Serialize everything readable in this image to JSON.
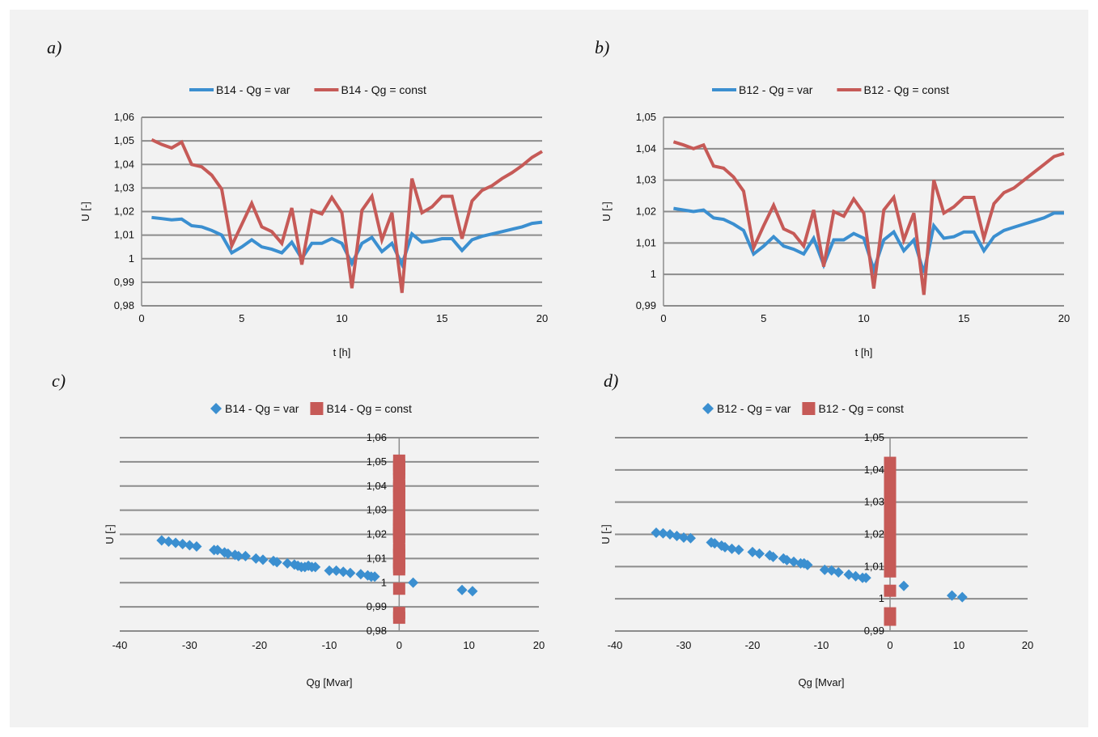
{
  "colors": {
    "var": "#3b8fd0",
    "const": "#c65a57",
    "grid": "#8c8c8c",
    "bg": "#f2f2f2"
  },
  "chart_data": [
    {
      "panel": "a)",
      "type": "line",
      "xlabel": "t [h]",
      "ylabel": "U [-]",
      "xlim": [
        0,
        20
      ],
      "ylim": [
        0.98,
        1.06
      ],
      "xticks": [
        "0",
        "5",
        "10",
        "15",
        "20"
      ],
      "yticks": [
        "0,98",
        "0,99",
        "1",
        "1,01",
        "1,02",
        "1,03",
        "1,04",
        "1,05",
        "1,06"
      ],
      "x": [
        0.5,
        1,
        1.5,
        2,
        2.5,
        3,
        3.5,
        4,
        4.5,
        5,
        5.5,
        6,
        6.5,
        7,
        7.5,
        8,
        8.5,
        9,
        9.5,
        10,
        10.5,
        11,
        11.5,
        12,
        12.5,
        13,
        13.5,
        14,
        14.5,
        15,
        15.5,
        16,
        16.5,
        17,
        17.5,
        18,
        18.5,
        19,
        19.5,
        20
      ],
      "series": [
        {
          "name": "B14 - Qg = var",
          "color": "var",
          "values": [
            1.0175,
            1.017,
            1.0165,
            1.0168,
            1.014,
            1.0135,
            1.012,
            1.01,
            1.0025,
            1.005,
            1.008,
            1.005,
            1.004,
            1.0025,
            1.007,
            1.0,
            1.0065,
            1.0065,
            1.0085,
            1.0065,
            0.998,
            1.0065,
            1.009,
            1.003,
            1.0065,
            0.9975,
            1.0105,
            1.007,
            1.0075,
            1.0085,
            1.0085,
            1.0035,
            1.008,
            1.0095,
            1.0105,
            1.0115,
            1.0125,
            1.0135,
            1.015,
            1.0155
          ]
        },
        {
          "name": "B14 - Qg = const",
          "color": "const",
          "values": [
            1.0505,
            1.0485,
            1.047,
            1.0495,
            1.04,
            1.039,
            1.0355,
            1.0295,
            1.0055,
            1.0145,
            1.0235,
            1.0135,
            1.0115,
            1.0065,
            1.0215,
            0.9975,
            1.0205,
            1.019,
            1.026,
            1.0195,
            0.9875,
            1.0205,
            1.0265,
            1.008,
            1.0195,
            0.9855,
            1.034,
            1.0195,
            1.022,
            1.0265,
            1.0265,
            1.0085,
            1.0245,
            1.029,
            1.031,
            1.034,
            1.0365,
            1.0395,
            1.043,
            1.0455
          ]
        }
      ]
    },
    {
      "panel": "b)",
      "type": "line",
      "xlabel": "t [h]",
      "ylabel": "U [-]",
      "xlim": [
        0,
        20
      ],
      "ylim": [
        0.99,
        1.05
      ],
      "xticks": [
        "0",
        "5",
        "10",
        "15",
        "20"
      ],
      "yticks": [
        "0,99",
        "1",
        "1,01",
        "1,02",
        "1,03",
        "1,04",
        "1,05"
      ],
      "x": [
        0.5,
        1,
        1.5,
        2,
        2.5,
        3,
        3.5,
        4,
        4.5,
        5,
        5.5,
        6,
        6.5,
        7,
        7.5,
        8,
        8.5,
        9,
        9.5,
        10,
        10.5,
        11,
        11.5,
        12,
        12.5,
        13,
        13.5,
        14,
        14.5,
        15,
        15.5,
        16,
        16.5,
        17,
        17.5,
        18,
        18.5,
        19,
        19.5,
        20
      ],
      "series": [
        {
          "name": "B12 - Qg = var",
          "color": "var",
          "values": [
            1.021,
            1.0205,
            1.02,
            1.0205,
            1.018,
            1.0175,
            1.016,
            1.014,
            1.0065,
            1.009,
            1.012,
            1.009,
            1.008,
            1.0065,
            1.0115,
            1.003,
            1.011,
            1.011,
            1.013,
            1.0115,
            1.0015,
            1.011,
            1.0135,
            1.0075,
            1.011,
            1.0005,
            1.0155,
            1.0115,
            1.012,
            1.0135,
            1.0135,
            1.0075,
            1.012,
            1.014,
            1.015,
            1.016,
            1.017,
            1.018,
            1.0195,
            1.0195
          ]
        },
        {
          "name": "B12 - Qg = const",
          "color": "const",
          "values": [
            1.0422,
            1.0412,
            1.04,
            1.0412,
            1.0345,
            1.0338,
            1.031,
            1.0265,
            1.0085,
            1.0155,
            1.022,
            1.0145,
            1.013,
            1.009,
            1.0205,
            1.0025,
            1.02,
            1.0185,
            1.024,
            1.0195,
            0.9955,
            1.0205,
            1.0245,
            1.011,
            1.0195,
            0.9935,
            1.03,
            1.0195,
            1.0215,
            1.0245,
            1.0245,
            1.0115,
            1.0225,
            1.026,
            1.0275,
            1.03,
            1.0325,
            1.035,
            1.0375,
            1.0385
          ]
        }
      ]
    },
    {
      "panel": "c)",
      "type": "scatter",
      "xlabel": "Qg [Mvar]",
      "ylabel": "U [-]",
      "xlim": [
        -40,
        20
      ],
      "ylim": [
        0.98,
        1.06
      ],
      "xticks": [
        "-40",
        "-30",
        "-20",
        "-10",
        "0",
        "10",
        "20"
      ],
      "yticks": [
        "0,98",
        "0,99",
        "1",
        "1,01",
        "1,02",
        "1,03",
        "1,04",
        "1,05",
        "1,06"
      ],
      "series": [
        {
          "name": "B14 - Qg = var",
          "color": "var",
          "marker": "diamond",
          "points": [
            [
              -34,
              1.0175
            ],
            [
              -33,
              1.017
            ],
            [
              -32,
              1.0165
            ],
            [
              -31,
              1.016
            ],
            [
              -30,
              1.0155
            ],
            [
              -29,
              1.015
            ],
            [
              -26.5,
              1.0135
            ],
            [
              -26,
              1.0135
            ],
            [
              -25,
              1.0125
            ],
            [
              -24.5,
              1.012
            ],
            [
              -23.5,
              1.0115
            ],
            [
              -23,
              1.011
            ],
            [
              -22,
              1.011
            ],
            [
              -20.5,
              1.01
            ],
            [
              -19.5,
              1.0095
            ],
            [
              -18,
              1.009
            ],
            [
              -17.5,
              1.0085
            ],
            [
              -16,
              1.008
            ],
            [
              -15,
              1.0075
            ],
            [
              -14.5,
              1.007
            ],
            [
              -14,
              1.0065
            ],
            [
              -13.5,
              1.0065
            ],
            [
              -13,
              1.007
            ],
            [
              -12.5,
              1.0065
            ],
            [
              -12,
              1.0065
            ],
            [
              -10,
              1.005
            ],
            [
              -9,
              1.005
            ],
            [
              -8,
              1.0045
            ],
            [
              -7,
              1.004
            ],
            [
              -5.5,
              1.0035
            ],
            [
              -4.5,
              1.003
            ],
            [
              -4,
              1.0025
            ],
            [
              -3.5,
              1.0025
            ],
            [
              2,
              1.0
            ],
            [
              9,
              0.997
            ],
            [
              10.5,
              0.9965
            ]
          ]
        },
        {
          "name": "B14 - Qg = const",
          "color": "const",
          "marker": "square",
          "points": [
            [
              0,
              1.0505
            ],
            [
              0,
              1.0485
            ],
            [
              0,
              1.047
            ],
            [
              0,
              1.0455
            ],
            [
              0,
              1.043
            ],
            [
              0,
              1.04
            ],
            [
              0,
              1.039
            ],
            [
              0,
              1.0365
            ],
            [
              0,
              1.034
            ],
            [
              0,
              1.0355
            ],
            [
              0,
              1.031
            ],
            [
              0,
              1.0295
            ],
            [
              0,
              1.0265
            ],
            [
              0,
              1.026
            ],
            [
              0,
              1.0245
            ],
            [
              0,
              1.0235
            ],
            [
              0,
              1.022
            ],
            [
              0,
              1.0215
            ],
            [
              0,
              1.0205
            ],
            [
              0,
              1.0195
            ],
            [
              0,
              1.019
            ],
            [
              0,
              1.0145
            ],
            [
              0,
              1.0135
            ],
            [
              0,
              1.0115
            ],
            [
              0,
              1.0085
            ],
            [
              0,
              1.008
            ],
            [
              0,
              1.0065
            ],
            [
              0,
              1.0055
            ],
            [
              0,
              0.9975
            ],
            [
              0,
              0.9875
            ],
            [
              0,
              0.9855
            ]
          ]
        }
      ]
    },
    {
      "panel": "d)",
      "type": "scatter",
      "xlabel": "Qg [Mvar]",
      "ylabel": "U [-]",
      "xlim": [
        -40,
        20
      ],
      "ylim": [
        0.99,
        1.05
      ],
      "xticks": [
        "-40",
        "-30",
        "-20",
        "-10",
        "0",
        "10",
        "20"
      ],
      "yticks": [
        "0,99",
        "1",
        "1,01",
        "1,02",
        "1,03",
        "1,04",
        "1,05"
      ],
      "series": [
        {
          "name": "B12 - Qg = var",
          "color": "var",
          "marker": "diamond",
          "points": [
            [
              -34,
              1.0205
            ],
            [
              -33,
              1.0203
            ],
            [
              -32,
              1.02
            ],
            [
              -31,
              1.0195
            ],
            [
              -30,
              1.019
            ],
            [
              -29,
              1.0188
            ],
            [
              -26,
              1.0175
            ],
            [
              -25.5,
              1.0172
            ],
            [
              -24.5,
              1.0165
            ],
            [
              -24,
              1.016
            ],
            [
              -23,
              1.0155
            ],
            [
              -22,
              1.0152
            ],
            [
              -20,
              1.0145
            ],
            [
              -19,
              1.014
            ],
            [
              -17.5,
              1.0135
            ],
            [
              -17,
              1.013
            ],
            [
              -15.5,
              1.0125
            ],
            [
              -15,
              1.012
            ],
            [
              -14,
              1.0115
            ],
            [
              -13,
              1.011
            ],
            [
              -12.5,
              1.011
            ],
            [
              -12,
              1.0105
            ],
            [
              -9.5,
              1.009
            ],
            [
              -8.5,
              1.0088
            ],
            [
              -7.5,
              1.0082
            ],
            [
              -6,
              1.0075
            ],
            [
              -5,
              1.007
            ],
            [
              -4,
              1.0065
            ],
            [
              -3.5,
              1.0065
            ],
            [
              2,
              1.004
            ],
            [
              9,
              1.001
            ],
            [
              10.5,
              1.0005
            ]
          ]
        },
        {
          "name": "B12 - Qg = const",
          "color": "const",
          "marker": "square",
          "points": [
            [
              0,
              1.0422
            ],
            [
              0,
              1.0412
            ],
            [
              0,
              1.04
            ],
            [
              0,
              1.0385
            ],
            [
              0,
              1.0375
            ],
            [
              0,
              1.035
            ],
            [
              0,
              1.0345
            ],
            [
              0,
              1.0325
            ],
            [
              0,
              1.031
            ],
            [
              0,
              1.03
            ],
            [
              0,
              1.0275
            ],
            [
              0,
              1.0265
            ],
            [
              0,
              1.026
            ],
            [
              0,
              1.0245
            ],
            [
              0,
              1.024
            ],
            [
              0,
              1.0225
            ],
            [
              0,
              1.022
            ],
            [
              0,
              1.0205
            ],
            [
              0,
              1.0195
            ],
            [
              0,
              1.0185
            ],
            [
              0,
              1.0155
            ],
            [
              0,
              1.0145
            ],
            [
              0,
              1.013
            ],
            [
              0,
              1.0115
            ],
            [
              0,
              1.011
            ],
            [
              0,
              1.009
            ],
            [
              0,
              1.0085
            ],
            [
              0,
              1.0025
            ],
            [
              0,
              0.9955
            ],
            [
              0,
              0.9935
            ]
          ]
        }
      ]
    }
  ]
}
